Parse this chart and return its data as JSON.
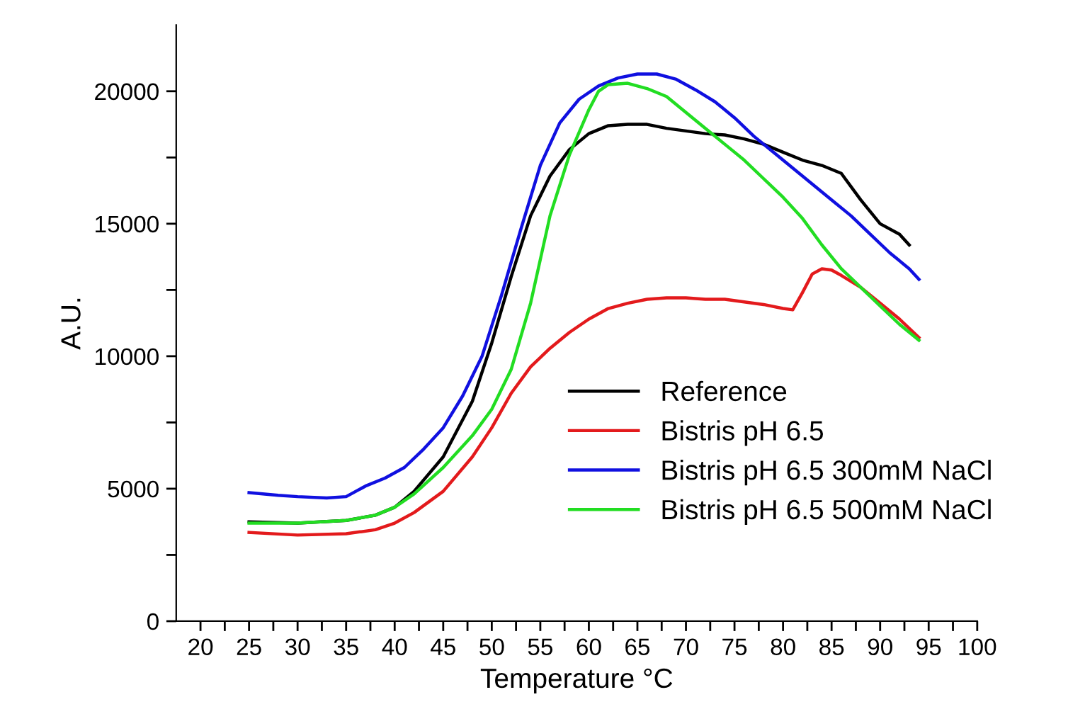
{
  "chart_data": {
    "type": "line",
    "xlabel": "Temperature °C",
    "ylabel": "A.U.",
    "xlim": [
      17.5,
      100
    ],
    "ylim": [
      0,
      22500
    ],
    "xticks": [
      20,
      {
        "value": 22.5,
        "label": null
      },
      25,
      {
        "value": 27.5,
        "label": null
      },
      30,
      {
        "value": 32.5,
        "label": null
      },
      35,
      {
        "value": 37.5,
        "label": null
      },
      40,
      {
        "value": 42.5,
        "label": null
      },
      45,
      {
        "value": 47.5,
        "label": null
      },
      50,
      {
        "value": 52.5,
        "label": null
      },
      55,
      {
        "value": 57.5,
        "label": null
      },
      60,
      {
        "value": 62.5,
        "label": null
      },
      65,
      {
        "value": 67.5,
        "label": null
      },
      70,
      {
        "value": 72.5,
        "label": null
      },
      75,
      {
        "value": 77.5,
        "label": null
      },
      80,
      {
        "value": 82.5,
        "label": null
      },
      85,
      {
        "value": 87.5,
        "label": null
      },
      90,
      {
        "value": 92.5,
        "label": null
      },
      95,
      {
        "value": 97.5,
        "label": null
      },
      100
    ],
    "yticks": [
      0,
      {
        "value": 2500,
        "label": null
      },
      5000,
      {
        "value": 7500,
        "label": null
      },
      10000,
      {
        "value": 12500,
        "label": null
      },
      15000,
      {
        "value": 17500,
        "label": null
      },
      20000
    ],
    "grid": false,
    "legend": "lower right",
    "marker": "none",
    "line_style": "solid",
    "series": [
      {
        "name": "Reference",
        "color": "#000000",
        "x": [
          25,
          30,
          35,
          38,
          40,
          42,
          45,
          48,
          50,
          52,
          54,
          56,
          58,
          60,
          62,
          64,
          66,
          68,
          70,
          72,
          74,
          76,
          78,
          80,
          82,
          84,
          86,
          88,
          90,
          92,
          93
        ],
        "values": [
          3750,
          3700,
          3800,
          4000,
          4300,
          4900,
          6200,
          8300,
          10500,
          13000,
          15300,
          16800,
          17800,
          18400,
          18700,
          18750,
          18750,
          18600,
          18500,
          18400,
          18350,
          18200,
          18000,
          17700,
          17400,
          17200,
          16900,
          15900,
          15000,
          14600,
          14200
        ]
      },
      {
        "name": "Bistris pH 6.5",
        "color": "#e31a1c",
        "x": [
          25,
          30,
          35,
          38,
          40,
          42,
          45,
          48,
          50,
          52,
          54,
          56,
          58,
          60,
          62,
          64,
          66,
          68,
          70,
          72,
          74,
          76,
          78,
          80,
          81,
          82,
          83,
          84,
          85,
          86,
          88,
          90,
          92,
          94
        ],
        "values": [
          3350,
          3250,
          3300,
          3450,
          3700,
          4100,
          4900,
          6200,
          7300,
          8600,
          9600,
          10300,
          10900,
          11400,
          11800,
          12000,
          12150,
          12200,
          12200,
          12150,
          12150,
          12050,
          11950,
          11800,
          11750,
          12400,
          13100,
          13300,
          13250,
          13050,
          12600,
          12000,
          11400,
          10700
        ]
      },
      {
        "name": "Bistris pH 6.5 300mM NaCl",
        "color": "#1010e0",
        "x": [
          25,
          28,
          30,
          33,
          35,
          37,
          39,
          41,
          43,
          45,
          47,
          49,
          51,
          53,
          55,
          57,
          59,
          61,
          63,
          65,
          67,
          69,
          71,
          73,
          75,
          77,
          79,
          81,
          83,
          85,
          87,
          89,
          91,
          93,
          94
        ],
        "values": [
          4850,
          4750,
          4700,
          4650,
          4700,
          5100,
          5400,
          5800,
          6500,
          7300,
          8500,
          10000,
          12300,
          14800,
          17200,
          18800,
          19700,
          20200,
          20500,
          20650,
          20650,
          20450,
          20050,
          19600,
          19000,
          18300,
          17700,
          17100,
          16500,
          15900,
          15300,
          14600,
          13900,
          13300,
          12900
        ]
      },
      {
        "name": "Bistris pH 6.5 500mM NaCl",
        "color": "#22dd22",
        "x": [
          25,
          30,
          35,
          38,
          40,
          42,
          45,
          48,
          50,
          52,
          54,
          56,
          58,
          60,
          61,
          62,
          64,
          66,
          68,
          70,
          72,
          74,
          76,
          78,
          80,
          82,
          84,
          86,
          88,
          90,
          92,
          94
        ],
        "values": [
          3700,
          3700,
          3800,
          4000,
          4300,
          4800,
          5800,
          7000,
          8000,
          9500,
          12000,
          15300,
          17600,
          19300,
          20000,
          20250,
          20300,
          20100,
          19800,
          19200,
          18600,
          18000,
          17400,
          16700,
          16000,
          15200,
          14200,
          13300,
          12600,
          11900,
          11200,
          10600
        ]
      }
    ]
  }
}
